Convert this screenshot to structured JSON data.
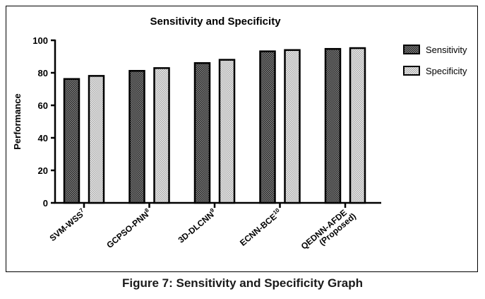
{
  "chart_data": {
    "type": "bar",
    "title": "Sensitivity and Specificity",
    "xlabel": "",
    "ylabel": "Performance",
    "ylim": [
      0,
      100
    ],
    "yticks": [
      0,
      20,
      40,
      60,
      80,
      100
    ],
    "categories": [
      {
        "name": "SVM-WSS",
        "sup": "7",
        "line2": ""
      },
      {
        "name": "GCPSO-PNN",
        "sup": "8",
        "line2": ""
      },
      {
        "name": "3D-DLCNN",
        "sup": "9",
        "line2": ""
      },
      {
        "name": "ECNN-BCE",
        "sup": "10",
        "line2": ""
      },
      {
        "name": "QEDNN-AFDE",
        "sup": "",
        "line2": "(Proposed)"
      }
    ],
    "series": [
      {
        "name": "Sensitivity",
        "values": [
          76.2,
          81.2,
          86.0,
          93.2,
          94.7
        ],
        "color": "#555555"
      },
      {
        "name": "Specificity",
        "values": [
          78.1,
          82.9,
          88.0,
          94.0,
          95.2
        ],
        "color": "#c8c8c8"
      }
    ],
    "legend": "right",
    "grid": false
  },
  "caption": "Figure 7: Sensitivity and Specificity Graph"
}
